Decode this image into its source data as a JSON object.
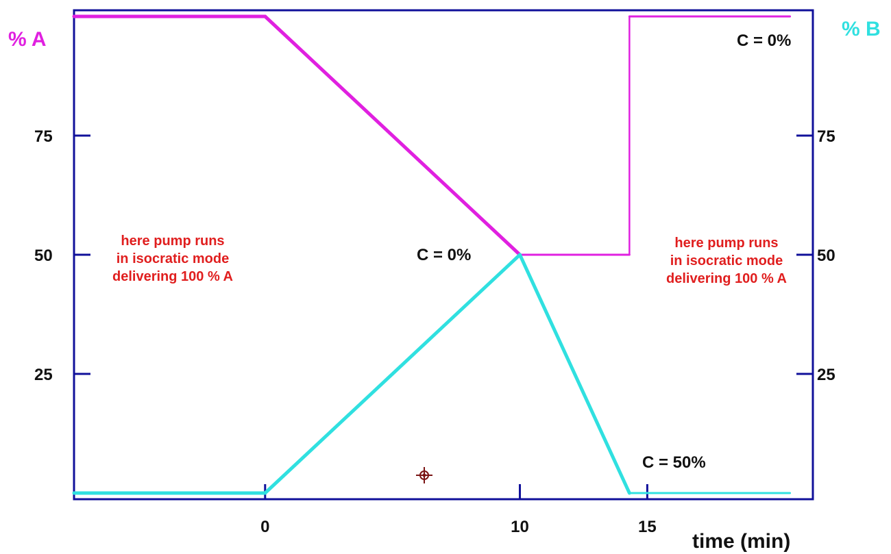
{
  "chart_data": {
    "type": "line",
    "title": "",
    "xlabel": "time (min)",
    "ylabel_left": "% A",
    "ylabel_right": "% B",
    "x_ticks": [
      0,
      10,
      15
    ],
    "y_ticks": [
      25,
      50,
      75
    ],
    "xlim": [
      -7.5,
      21.5
    ],
    "ylim": [
      0,
      100
    ],
    "series": [
      {
        "id": "A",
        "color": "#e020e0",
        "x": [
          -7.5,
          0,
          10,
          14.3,
          14.3,
          20.6
        ],
        "y": [
          100,
          100,
          50,
          50,
          100,
          100
        ]
      },
      {
        "id": "B",
        "color": "#30e0e0",
        "x": [
          -7.5,
          0,
          10,
          14.3,
          20.6
        ],
        "y": [
          0,
          0,
          50,
          0,
          0
        ]
      }
    ],
    "annotations": {
      "c_top": "C = 0%",
      "c_mid": "C = 0%",
      "c_bottom": "C = 50%",
      "note_left": [
        "here pump runs",
        "in isocratic mode",
        "delivering 100 % A"
      ],
      "note_right": [
        "here pump runs",
        "in isocratic mode",
        "delivering 100 % A"
      ]
    },
    "colors": {
      "axis": "#10109a",
      "label_a": "#e020e0",
      "label_b": "#30e0e0",
      "note": "#e01e1e"
    }
  }
}
